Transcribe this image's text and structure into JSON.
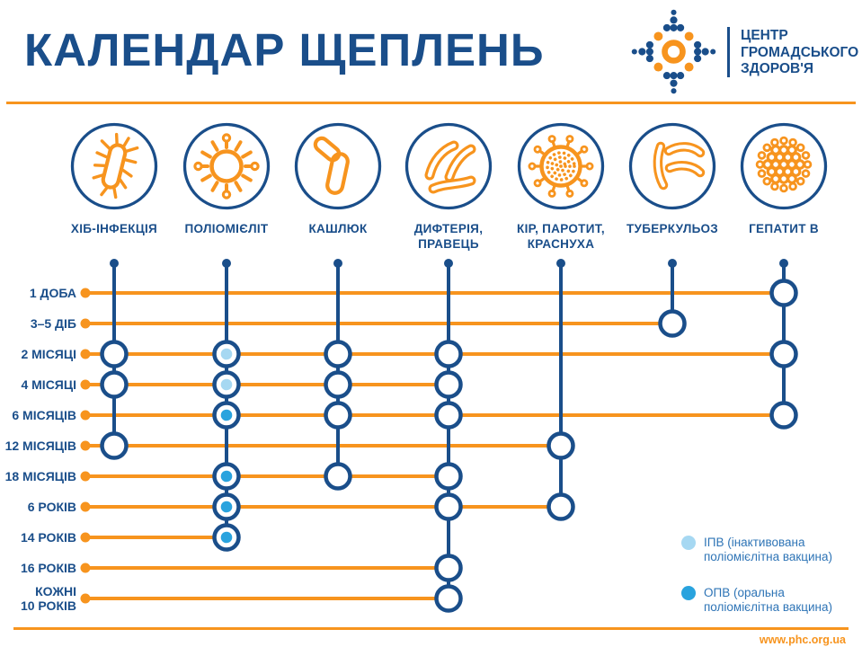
{
  "header": {
    "title": "КАЛЕНДАР ЩЕПЛЕНЬ",
    "org_name": "ЦЕНТР\nГРОМАДСЬКОГО\nЗДОРОВ'Я"
  },
  "colors": {
    "blue": "#1a4e8a",
    "orange": "#f7941e",
    "ipv": "#a6d8f2",
    "opv": "#29a3de",
    "legend_blue": "#2e74b6"
  },
  "diseases": [
    {
      "label": "ХІБ-ІНФЕКЦІЯ",
      "icon": "hib-bacterium-icon"
    },
    {
      "label": "ПОЛІОМІЄЛІТ",
      "icon": "polio-virus-icon"
    },
    {
      "label": "КАШЛЮК",
      "icon": "pertussis-bacteria-icon"
    },
    {
      "label": "ДИФТЕРІЯ,\nПРАВЕЦЬ",
      "icon": "diphtheria-tetanus-bacteria-icon"
    },
    {
      "label": "КІР, ПАРОТИТ,\nКРАСНУХА",
      "icon": "measles-mumps-rubella-virus-icon"
    },
    {
      "label": "ТУБЕРКУЛЬОЗ",
      "icon": "tuberculosis-bacteria-icon"
    },
    {
      "label": "ГЕПАТИТ В",
      "icon": "hepatitis-b-virus-icon"
    }
  ],
  "ages": [
    "1 ДОБА",
    "3–5 ДІБ",
    "2 МІСЯЦІ",
    "4 МІСЯЦІ",
    "6 МІСЯЦІВ",
    "12 МІСЯЦІВ",
    "18 МІСЯЦІВ",
    "6 РОКІВ",
    "14 РОКІВ",
    "16 РОКІВ",
    "КОЖНІ\n10 РОКІВ"
  ],
  "schedule": [
    {
      "disease": "ХІБ-ІНФЕКЦІЯ",
      "events": [
        {
          "age": 2,
          "marker": "dose"
        },
        {
          "age": 3,
          "marker": "dose"
        },
        {
          "age": 5,
          "marker": "dose"
        }
      ]
    },
    {
      "disease": "ПОЛІОМІЄЛІТ",
      "events": [
        {
          "age": 2,
          "marker": "ipv"
        },
        {
          "age": 3,
          "marker": "ipv"
        },
        {
          "age": 4,
          "marker": "opv"
        },
        {
          "age": 6,
          "marker": "opv"
        },
        {
          "age": 7,
          "marker": "opv"
        },
        {
          "age": 8,
          "marker": "opv"
        }
      ]
    },
    {
      "disease": "КАШЛЮК",
      "events": [
        {
          "age": 2,
          "marker": "dose"
        },
        {
          "age": 3,
          "marker": "dose"
        },
        {
          "age": 4,
          "marker": "dose"
        },
        {
          "age": 6,
          "marker": "dose"
        }
      ]
    },
    {
      "disease": "ДИФТЕРІЯ, ПРАВЕЦЬ",
      "events": [
        {
          "age": 2,
          "marker": "dose"
        },
        {
          "age": 3,
          "marker": "dose"
        },
        {
          "age": 4,
          "marker": "dose"
        },
        {
          "age": 6,
          "marker": "dose"
        },
        {
          "age": 7,
          "marker": "dose"
        },
        {
          "age": 9,
          "marker": "dose"
        },
        {
          "age": 10,
          "marker": "dose"
        }
      ]
    },
    {
      "disease": "КІР, ПАРОТИТ, КРАСНУХА",
      "events": [
        {
          "age": 5,
          "marker": "dose"
        },
        {
          "age": 7,
          "marker": "dose"
        }
      ]
    },
    {
      "disease": "ТУБЕРКУЛЬОЗ",
      "events": [
        {
          "age": 1,
          "marker": "dose"
        }
      ]
    },
    {
      "disease": "ГЕПАТИТ В",
      "events": [
        {
          "age": 0,
          "marker": "dose"
        },
        {
          "age": 2,
          "marker": "dose"
        },
        {
          "age": 4,
          "marker": "dose"
        }
      ]
    }
  ],
  "legend": {
    "items": [
      {
        "swatch": "ipv",
        "label": "ІПВ (інактивована\nполіомієлітна вакцина)"
      },
      {
        "swatch": "opv",
        "label": "ОПВ (оральна\nполіомієлітна вакцина)"
      }
    ]
  },
  "footer": {
    "url": "www.phc.org.ua"
  }
}
